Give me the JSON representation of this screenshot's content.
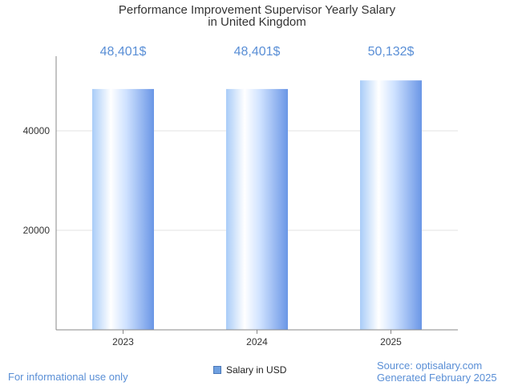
{
  "chart_data": {
    "type": "bar",
    "title": [
      "Performance Improvement Supervisor Yearly Salary",
      "in United Kingdom"
    ],
    "categories": [
      "2023",
      "2024",
      "2025"
    ],
    "values": [
      48401,
      48401,
      50132
    ],
    "data_labels": [
      "48,401$",
      "48,401$",
      "50,132$"
    ],
    "series_name": "Salary in USD",
    "y_ticks": [
      20000,
      40000
    ],
    "ylim": [
      0,
      55000
    ],
    "grid": true,
    "legend": "bottom-center",
    "colors": {
      "bar_light": "#ffffff",
      "bar_mid": "#b8d6ff",
      "bar_dark": "#6a96e6",
      "label": "#5a8fd6"
    }
  },
  "footer": {
    "left": "For informational use only",
    "source": "Source: optisalary.com",
    "generated": "Generated February 2025"
  }
}
